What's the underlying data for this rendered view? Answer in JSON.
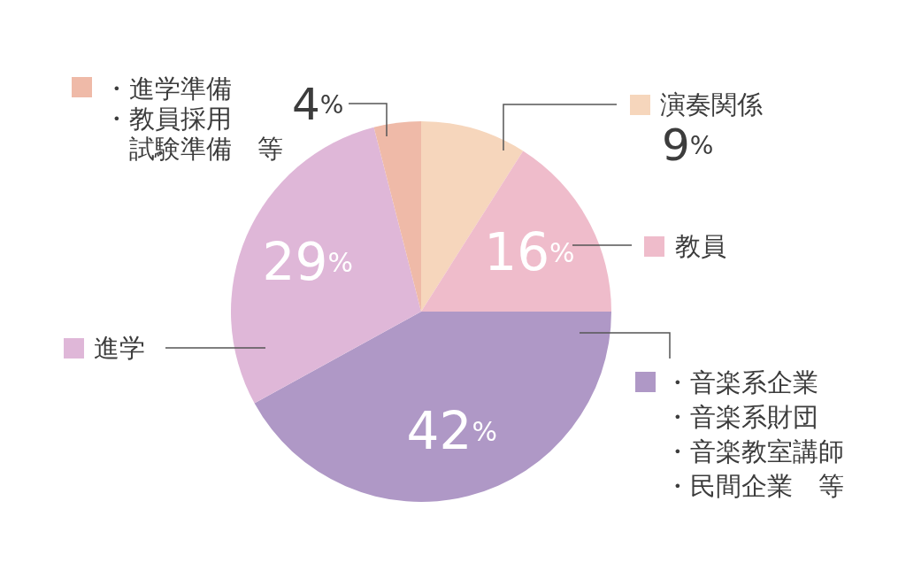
{
  "chart_data": {
    "type": "pie",
    "categories": [
      "演奏関係",
      "教員",
      "・音楽系企業・音楽系財団・音楽教室講師・民間企業　等",
      "進学",
      "・進学準備・教員採用試験準備　等"
    ],
    "values": [
      9,
      16,
      42,
      29,
      4
    ],
    "colors": [
      "#f6d6bc",
      "#efbccb",
      "#af98c6",
      "#dfb7d8",
      "#efbaa8"
    ],
    "value_labels": [
      "9%",
      "16%",
      "42%",
      "29%",
      "4%"
    ],
    "legend": "right"
  }
}
